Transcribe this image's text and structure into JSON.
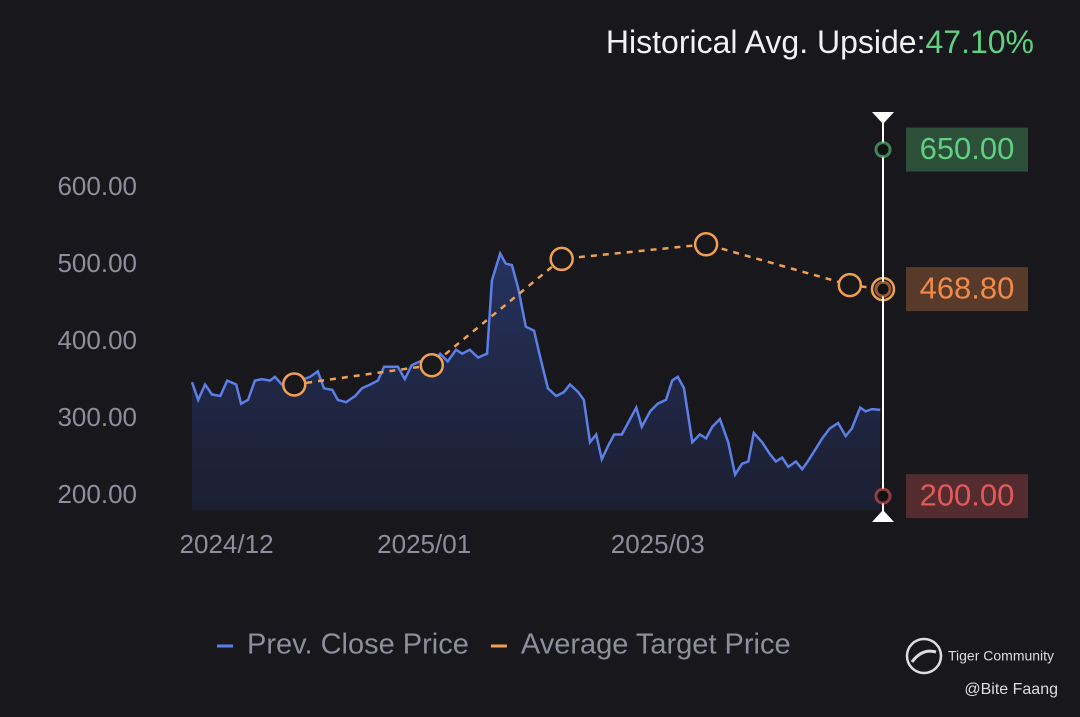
{
  "chart_data": {
    "type": "line",
    "title": "Historical Avg. Upside:",
    "upside": "47.10%",
    "xlim": [
      0,
      100
    ],
    "xticks": [
      {
        "value": 5,
        "label": "2024/12"
      },
      {
        "value": 33.6,
        "label": "2025/01"
      },
      {
        "value": 67.4,
        "label": "2025/03"
      }
    ],
    "ylim": [
      182,
      691
    ],
    "yticks": [
      {
        "value": 200,
        "label": "200.00"
      },
      {
        "value": 300,
        "label": "300.00"
      },
      {
        "value": 400,
        "label": "400.00"
      },
      {
        "value": 500,
        "label": "500.00"
      },
      {
        "value": 600,
        "label": "600.00"
      }
    ],
    "series": [
      {
        "name": "Prev. Close Price",
        "color": "#5b7fe6",
        "x": [
          0,
          0.9,
          1.9,
          2.9,
          4.1,
          5.1,
          6.4,
          7.1,
          8.1,
          9.1,
          10.1,
          11.3,
          12.0,
          13.0,
          14.2,
          15.6,
          17.1,
          18.2,
          19.1,
          20.3,
          21.1,
          22.3,
          23.6,
          24.6,
          25.8,
          26.9,
          27.8,
          29.8,
          30.8,
          31.8,
          33.0,
          34.4,
          35.9,
          37.0,
          38.2,
          39.1,
          40.2,
          41.4,
          42.7,
          43.4,
          44.6,
          45.4,
          46.3,
          47.2,
          48.3,
          49.5,
          50.4,
          51.5,
          52.7,
          53.8,
          54.7,
          55.9,
          56.7,
          57.6,
          58.5,
          59.3,
          60.2,
          61.1,
          62.2,
          63.4,
          64.3,
          65.1,
          66.3,
          67.4,
          68.6,
          69.5,
          70.3,
          71.2,
          72.4,
          73.5,
          74.4,
          75.3,
          76.4,
          77.6,
          78.6,
          79.6,
          80.5,
          81.3,
          82.5,
          83.6,
          84.5,
          85.4,
          86.3,
          87.4,
          88.3,
          89.1,
          90.3,
          91.2,
          92.3,
          93.5,
          94.6,
          95.5,
          96.7,
          97.5,
          98.4,
          99.6
        ],
        "values": [
          348,
          325,
          345,
          332,
          330,
          350,
          345,
          320,
          325,
          350,
          352,
          350,
          355,
          345,
          340,
          350,
          355,
          362,
          340,
          338,
          325,
          322,
          330,
          340,
          345,
          350,
          368,
          368,
          352,
          370,
          375,
          368,
          385,
          375,
          390,
          385,
          390,
          380,
          385,
          480,
          515,
          502,
          500,
          470,
          420,
          415,
          380,
          340,
          330,
          335,
          345,
          335,
          325,
          270,
          280,
          248,
          265,
          280,
          280,
          300,
          315,
          290,
          310,
          320,
          325,
          350,
          355,
          340,
          270,
          280,
          275,
          290,
          300,
          270,
          228,
          242,
          245,
          282,
          270,
          255,
          245,
          250,
          238,
          245,
          235,
          245,
          262,
          275,
          288,
          295,
          278,
          288,
          315,
          310,
          313,
          312
        ]
      },
      {
        "name": "Average Target Price",
        "color": "#f0a050",
        "x": [
          14.8,
          34.7,
          53.5,
          74.4,
          95.2,
          100
        ],
        "values": [
          345,
          370,
          508,
          527,
          474,
          468.8
        ]
      }
    ],
    "target_range": [
      {
        "value": 650,
        "label": "650.00",
        "color": "#5fcf80"
      },
      {
        "value": 468.8,
        "label": "468.80",
        "color": "#f08a4b"
      },
      {
        "value": 200,
        "label": "200.00",
        "color": "#e05a5a"
      }
    ],
    "watermark": "Tiger Community",
    "author": "@Bite Faang"
  }
}
